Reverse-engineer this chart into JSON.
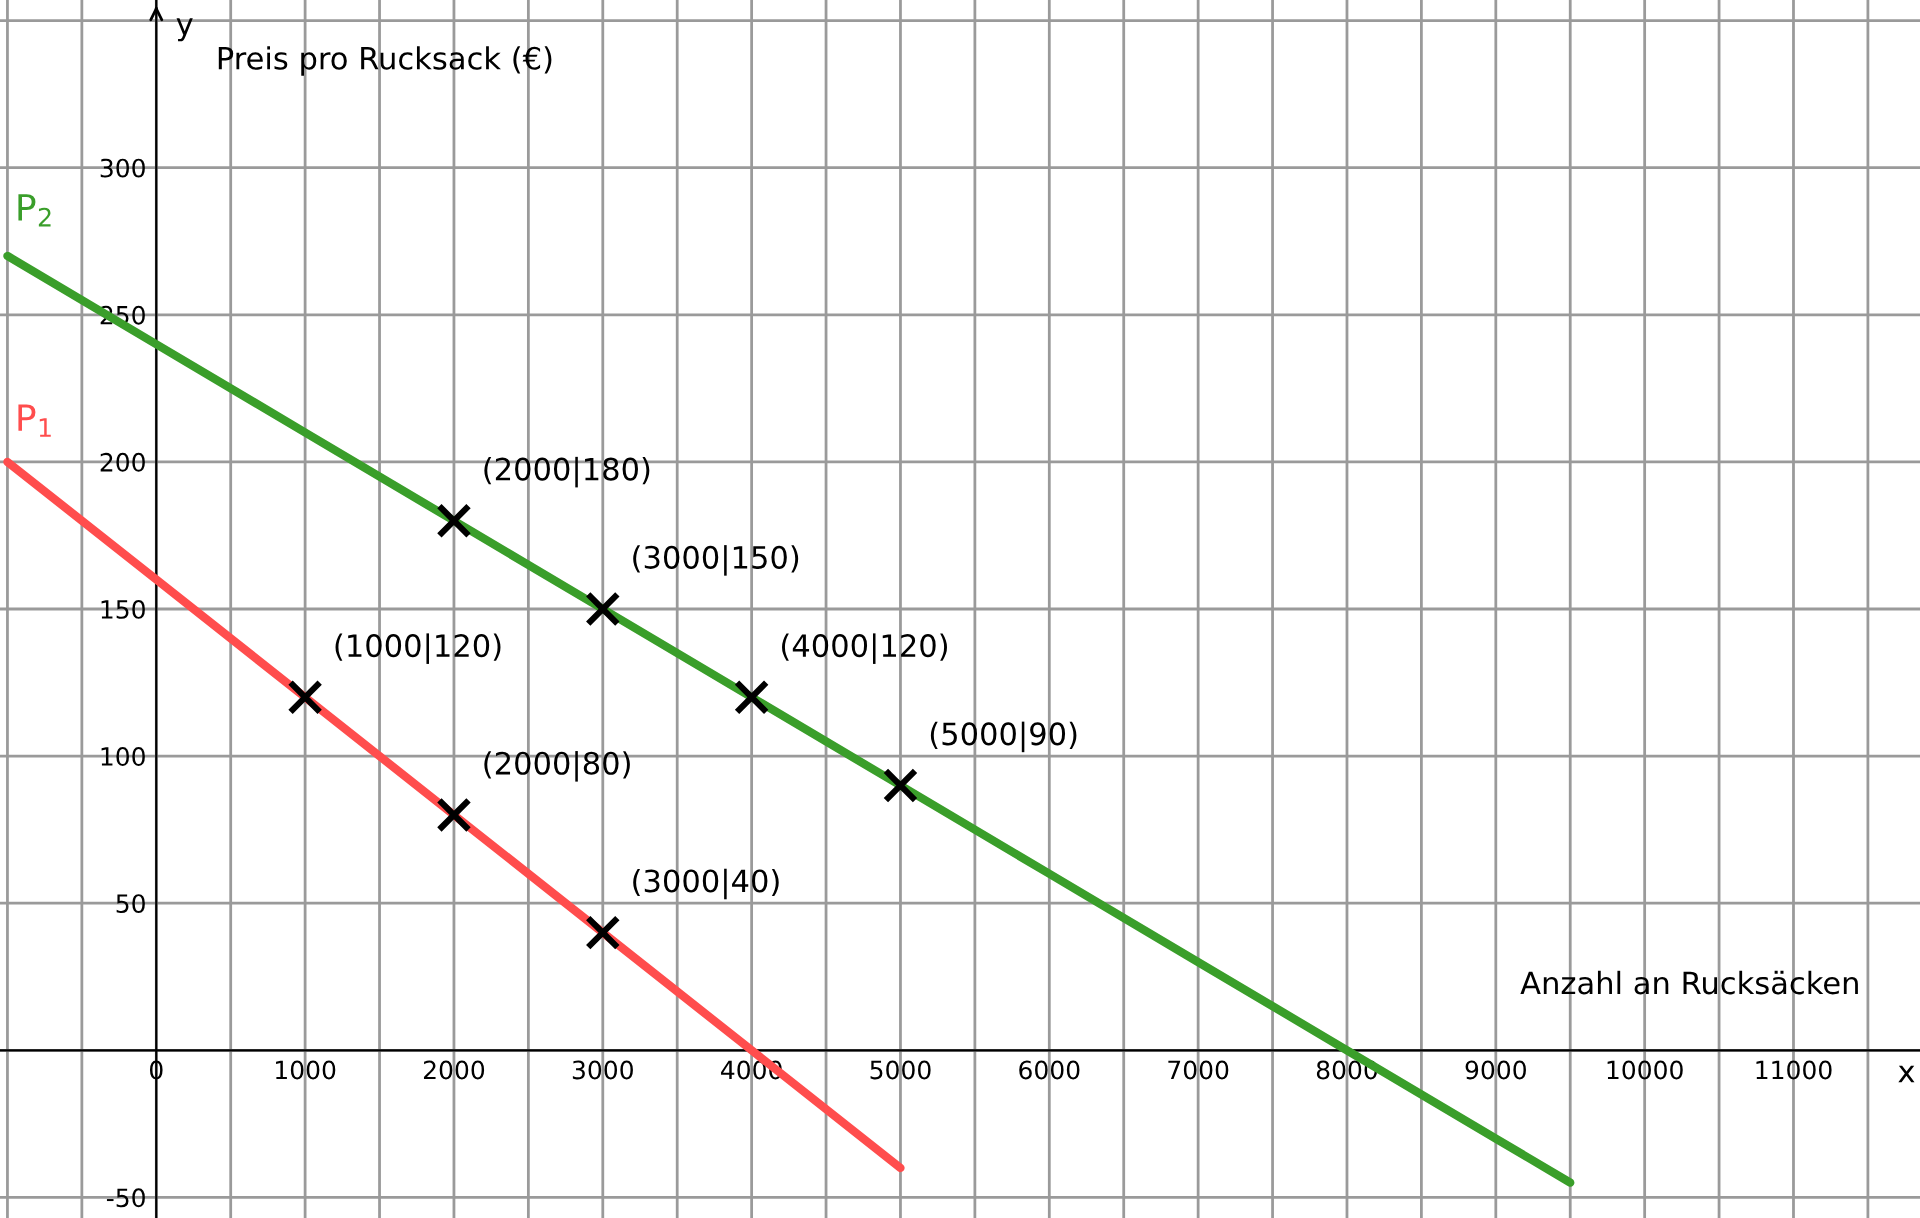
{
  "chart_data": {
    "type": "line",
    "xlabel": "x",
    "ylabel": "y",
    "annotations": [
      "Preis pro Rucksack (€)",
      "Anzahl an Rucksäcken"
    ],
    "xlim": [
      -1050,
      11850
    ],
    "ylim": [
      -57,
      357
    ],
    "xticks": [
      0,
      1000,
      2000,
      3000,
      4000,
      5000,
      6000,
      7000,
      8000,
      9000,
      10000,
      11000
    ],
    "yticks": [
      -50,
      50,
      100,
      150,
      200,
      250,
      300
    ],
    "grid": true,
    "series": [
      {
        "name": "P$_{1}$",
        "color": "#ff4d4d",
        "x": [
          -1000,
          0,
          1000,
          2000,
          3000,
          4000,
          5000
        ],
        "values": [
          200,
          160,
          120,
          80,
          40,
          0,
          -40
        ]
      },
      {
        "name": "P$_{2}$",
        "color": "#3a9e2a",
        "x": [
          -1000,
          0,
          1000,
          2000,
          3000,
          4000,
          5000,
          6000,
          7000,
          8000,
          9000,
          9500
        ],
        "values": [
          270,
          240,
          210,
          180,
          150,
          120,
          90,
          60,
          30,
          0,
          -30,
          -45
        ]
      },
      {
        "type": "scatter",
        "marker": "cross",
        "color": "#000000",
        "x": [
          1000,
          2000,
          3000
        ],
        "values": [
          120,
          80,
          40
        ],
        "value_labels": [
          "(1000|120)",
          "(2000|80)",
          "(3000|40)"
        ]
      },
      {
        "type": "scatter",
        "marker": "cross",
        "color": "#000000",
        "x": [
          2000,
          3000,
          4000,
          5000
        ],
        "values": [
          180,
          150,
          120,
          90
        ],
        "value_labels": [
          "(2000|180)",
          "(3000|150)",
          "(4000|120)",
          "(5000|90)"
        ]
      }
    ]
  }
}
